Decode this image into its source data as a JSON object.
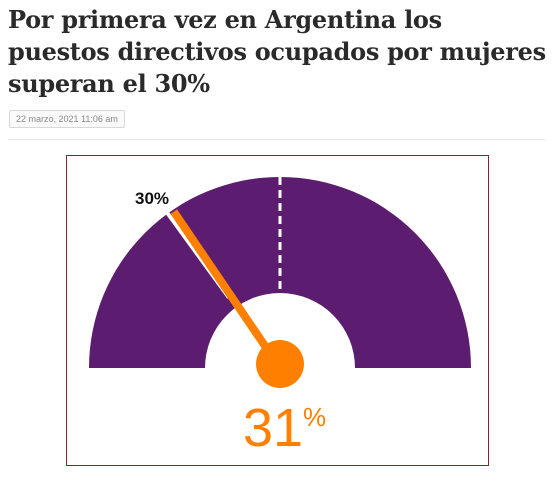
{
  "article": {
    "headline": "Por primera vez en Argentina los puestos directivos ocupados por mujeres superan el 30%",
    "date": "22 marzo, 2021 11:06 am"
  },
  "figure": {
    "marker_label": "30%",
    "value_number": "31",
    "value_unit": "%",
    "marker_level": 0.3,
    "needle_level": 0.31,
    "colors": {
      "arc": "#5c1c70",
      "needle": "#ff8000",
      "frame": "#8b2232"
    }
  }
}
